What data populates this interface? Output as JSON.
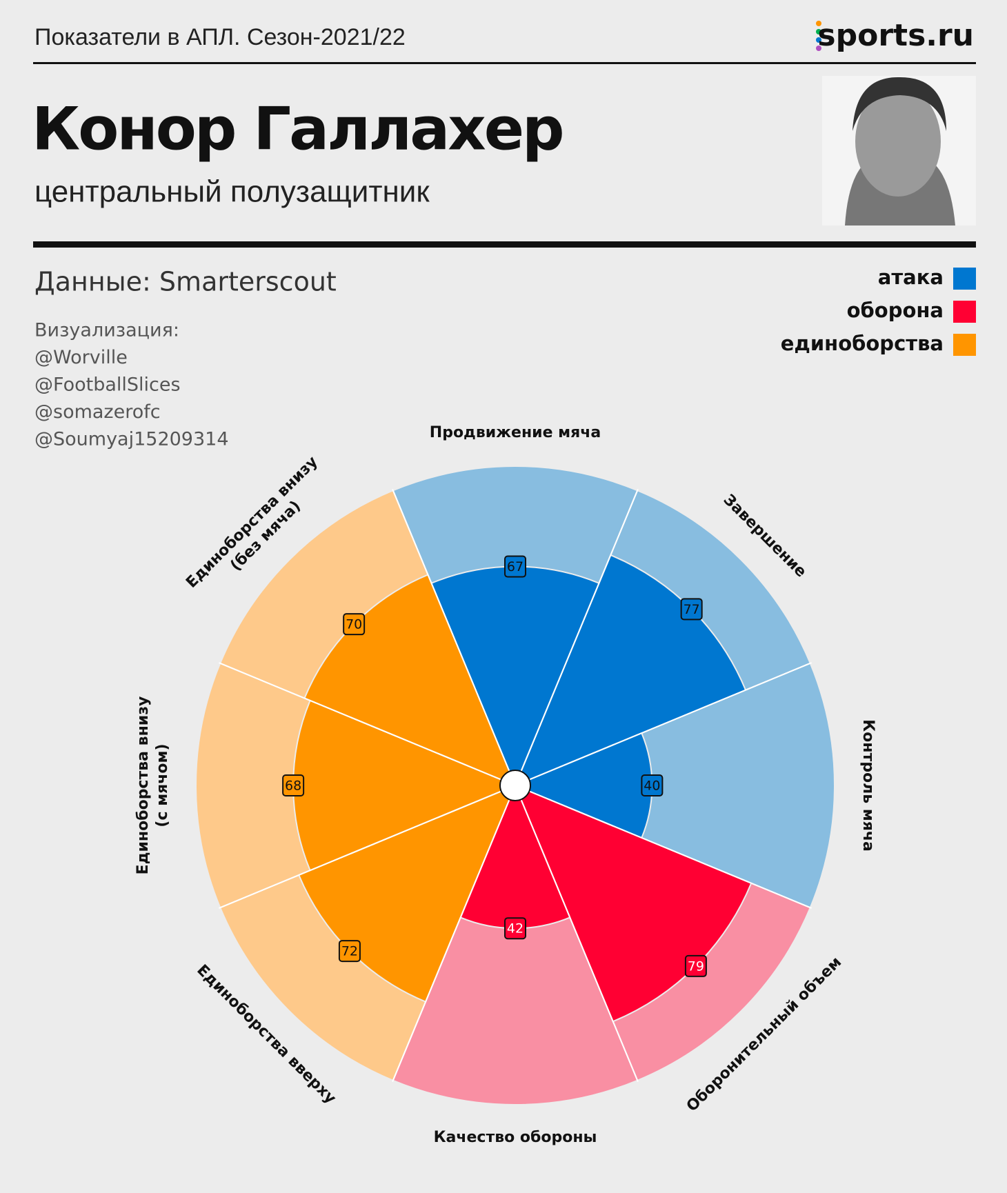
{
  "header": {
    "caption": "Показатели в АПЛ. Сезон-2021/22",
    "logo": "sports.ru",
    "title": "Конор Галлахер",
    "subtitle": "центральный полузащитник",
    "source": "Данные: Smarterscout",
    "credits": [
      "Визуализация:",
      "@Worville",
      "@FootballSlices",
      "@somazerofc",
      "@Soumyaj15209314"
    ]
  },
  "chart_data": {
    "type": "pizza",
    "rlim": [
      0,
      100
    ],
    "series": [
      {
        "name": "атака",
        "color": "#0077d0",
        "background": "#88bde0",
        "label_color": "#111111",
        "categories": [
          "Продвижение мяча",
          "Завершение",
          "Контроль мяча"
        ],
        "values": [
          67,
          77,
          40
        ]
      },
      {
        "name": "оборона",
        "color": "#ff0033",
        "background": "#f98fa3",
        "label_color": "#ffffff",
        "categories": [
          "Оборонительный объем",
          "Качество обороны"
        ],
        "values": [
          79,
          42
        ]
      },
      {
        "name": "единоборства",
        "color": "#ff9500",
        "background": "#fec98a",
        "label_color": "#111111",
        "categories": [
          "Единоборства вверху",
          "Единоборства внизу\n(с мячом)",
          "Единоборства внизу\n(без мяча)"
        ],
        "values": [
          72,
          68,
          70
        ]
      }
    ]
  }
}
